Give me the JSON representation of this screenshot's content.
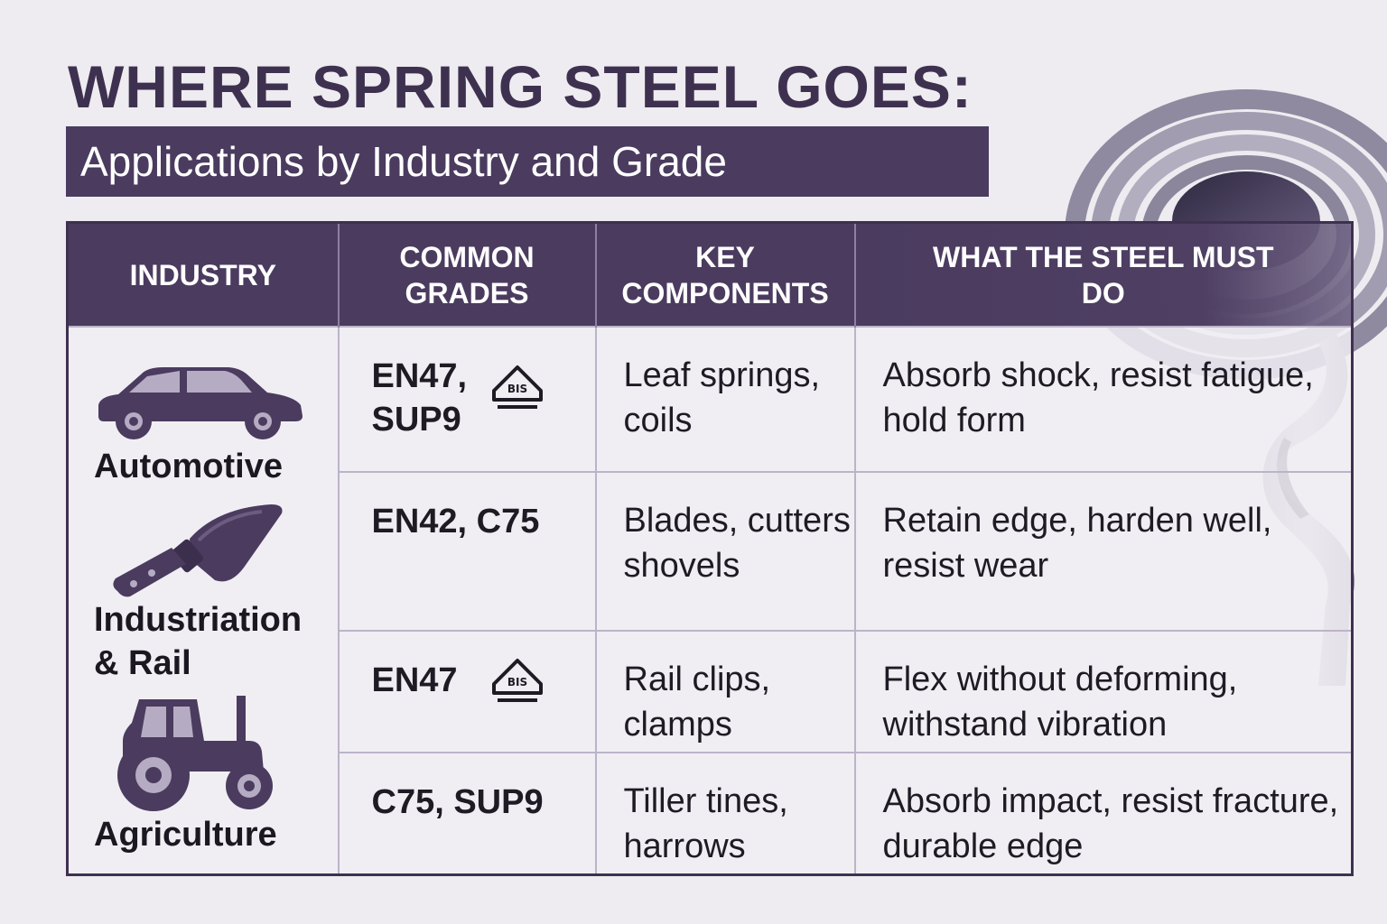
{
  "title": "WHERE SPRING STEEL GOES:",
  "subtitle": "Applications by Industry and Grade",
  "colors": {
    "header_bg": "#4a3b5f",
    "title_text": "#3e3150",
    "icon_fill": "#4a3b5f",
    "background": "#eeecf0"
  },
  "table": {
    "headers": {
      "industry": "INDUSTRY",
      "grades_line1": "COMMON",
      "grades_line2": "GRADES",
      "components_line1": "KEY",
      "components_line2": "COMPONENTS",
      "requirements_line1": "WHAT THE STEEL MUST",
      "requirements_line2": "DO"
    },
    "industries": [
      {
        "label": "Automotive",
        "icon": "car-icon"
      },
      {
        "label_line1": "Industriation",
        "label_line2": "& Rail",
        "icon": "knife-icon"
      },
      {
        "label": "Agriculture",
        "icon": "tractor-icon"
      }
    ],
    "rows": [
      {
        "grades_line1": "EN47,",
        "grades_line2": "SUP9",
        "badge": "BIS",
        "components": "Leaf springs, coils",
        "requirements": "Absorb shock, resist fatigue, hold form"
      },
      {
        "grades_line1": "EN42, C75",
        "components": "Blades, cutters shovels",
        "requirements": "Retain edge, harden well, resist wear"
      },
      {
        "grades_line1": "EN47",
        "badge": "BIS",
        "components": "Rail clips, clamps",
        "requirements": "Flex without deforming, withstand vibration"
      },
      {
        "grades_line1": "C75, SUP9",
        "components": "Tiller tines, harrows",
        "requirements": "Absorb impact, resist fracture, durable edge"
      }
    ]
  }
}
